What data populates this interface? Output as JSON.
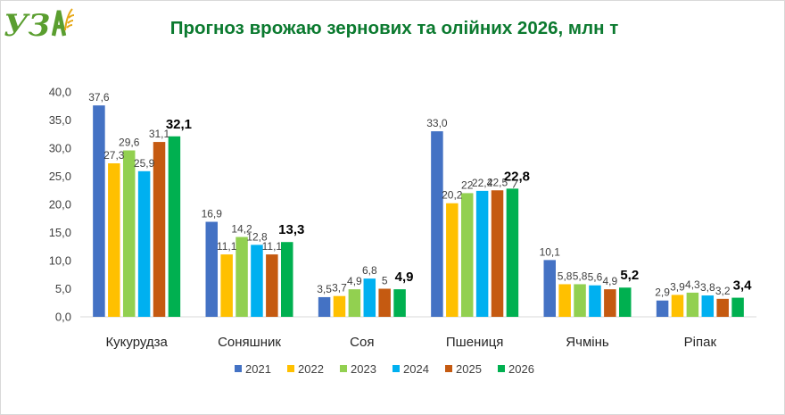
{
  "header": {
    "logo_text": "УЗА"
  },
  "chart_data": {
    "type": "bar",
    "title": "Прогноз врожаю зернових та олійних 2026, млн т",
    "xlabel": "",
    "ylabel": "",
    "ylim": [
      0,
      40
    ],
    "yticks": [
      "0,0",
      "5,0",
      "10,0",
      "15,0",
      "20,0",
      "25,0",
      "30,0",
      "35,0",
      "40,0"
    ],
    "grid": false,
    "legend_position": "bottom",
    "categories": [
      "Кукурудза",
      "Соняшник",
      "Соя",
      "Пшениця",
      "Ячмінь",
      "Ріпак"
    ],
    "series": [
      {
        "name": "2021",
        "color": "#4472c4",
        "values": [
          37.6,
          16.9,
          3.5,
          33.0,
          10.1,
          2.9
        ],
        "labels": [
          "37,6",
          "16,9",
          "3,5",
          "33,0",
          "10,1",
          "2,9"
        ]
      },
      {
        "name": "2022",
        "color": "#ffc000",
        "values": [
          27.3,
          11.1,
          3.7,
          20.2,
          5.8,
          3.9
        ],
        "labels": [
          "27,3",
          "11,1",
          "3,7",
          "20,2",
          "5,8",
          "3,9"
        ]
      },
      {
        "name": "2023",
        "color": "#92d050",
        "values": [
          29.6,
          14.2,
          4.9,
          22.0,
          5.8,
          4.3
        ],
        "labels": [
          "29,6",
          "14,2",
          "4,9",
          "22",
          "5,8",
          "4,3"
        ]
      },
      {
        "name": "2024",
        "color": "#00b0f0",
        "values": [
          25.9,
          12.8,
          6.8,
          22.4,
          5.6,
          3.8
        ],
        "labels": [
          "25,9",
          "12,8",
          "6,8",
          "22,4",
          "5,6",
          "3,8"
        ]
      },
      {
        "name": "2025",
        "color": "#c55a11",
        "values": [
          31.1,
          11.1,
          5.0,
          22.5,
          4.9,
          3.2
        ],
        "labels": [
          "31,1",
          "11,1",
          "5",
          "22,5",
          "4,9",
          "3,2"
        ]
      },
      {
        "name": "2026",
        "color": "#00b050",
        "values": [
          32.1,
          13.3,
          4.9,
          22.8,
          5.2,
          3.4
        ],
        "labels": [
          "32,1",
          "13,3",
          "4,9",
          "22,8",
          "5,2",
          "3,4"
        ],
        "emphasis": true
      }
    ]
  }
}
